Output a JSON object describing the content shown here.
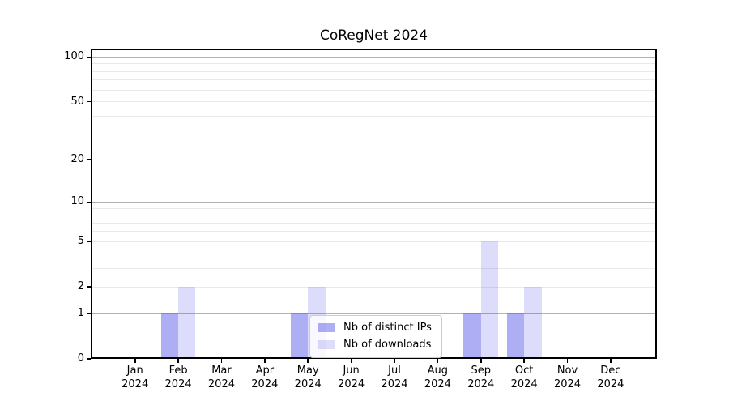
{
  "title": "CoRegNet 2024",
  "colors": {
    "bar_distinct_ips": "rgba(85,85,235,0.48)",
    "bar_downloads": "rgba(85,85,235,0.20)",
    "grid_major": "#b2b2b2",
    "grid_minor": "#e9e9e9",
    "axis": "#000000",
    "legend_border": "#cccccc"
  },
  "chart_data": {
    "type": "bar",
    "title": "CoRegNet 2024",
    "categories": [
      "Jan 2024",
      "Feb 2024",
      "Mar 2024",
      "Apr 2024",
      "May 2024",
      "Jun 2024",
      "Jul 2024",
      "Aug 2024",
      "Sep 2024",
      "Oct 2024",
      "Nov 2024",
      "Dec 2024"
    ],
    "series": [
      {
        "name": "Nb of distinct IPs",
        "values": [
          0,
          1,
          0,
          0,
          1,
          0,
          0,
          0,
          1,
          1,
          0,
          0
        ],
        "color": "rgba(85,85,235,0.48)"
      },
      {
        "name": "Nb of downloads",
        "values": [
          0,
          2,
          0,
          0,
          2,
          0,
          0,
          0,
          5,
          2,
          0,
          0
        ],
        "color": "rgba(85,85,235,0.20)"
      }
    ],
    "yscale": "log10(value+1)",
    "yticks": [
      0,
      1,
      2,
      5,
      10,
      20,
      50,
      100
    ],
    "yminor": [
      3,
      4,
      6,
      7,
      8,
      9,
      30,
      40,
      60,
      70,
      80,
      90
    ],
    "grid_major_at": [
      1,
      10,
      100
    ],
    "ylim_top": 114,
    "xlabel": "",
    "ylabel": "",
    "grid": true,
    "legend_position": "lower center"
  }
}
